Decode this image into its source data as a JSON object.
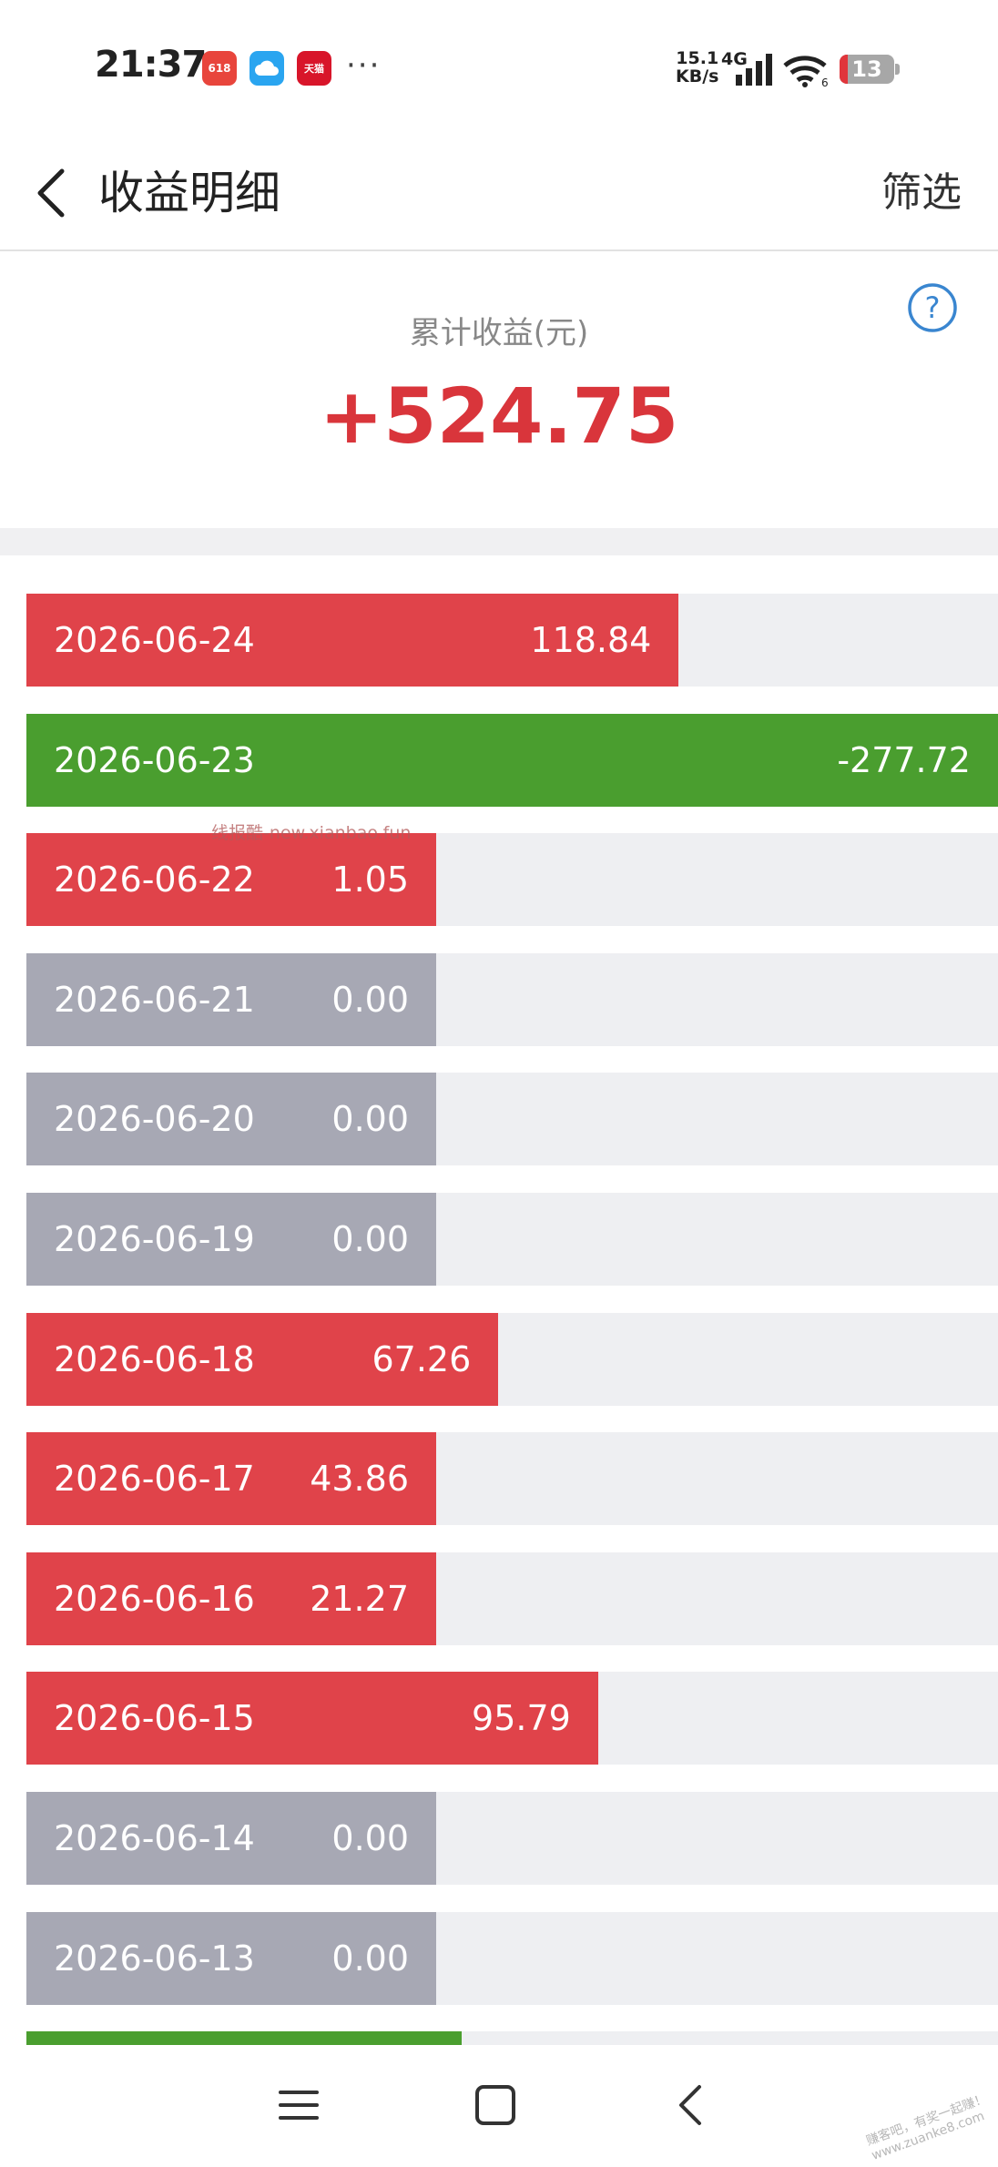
{
  "status_bar": {
    "time": "21:37",
    "app_icons": [
      {
        "name": "618-shopping-app-icon",
        "color": "#e8453c",
        "label": "618"
      },
      {
        "name": "cloud-app-icon",
        "color": "#2aa5f0",
        "label": ""
      },
      {
        "name": "tmall-app-icon",
        "color": "#d8152a",
        "label": "天猫"
      }
    ],
    "more": "···",
    "net_speed_value": "15.1",
    "net_speed_unit": "KB/s",
    "network": "4G",
    "battery": "13"
  },
  "header": {
    "title": "收益明细",
    "filter_label": "筛选"
  },
  "summary": {
    "label": "累计收益(元)",
    "value": "+524.75"
  },
  "colors": {
    "positive": "#e0434a",
    "negative": "#4a9e2f",
    "zero": "#a7a8b4",
    "track": "#eeeff2",
    "accent": "#d9353b"
  },
  "records": [
    {
      "date": "2026-06-24",
      "value": "118.84",
      "amount": 118.84
    },
    {
      "date": "2026-06-23",
      "value": "-277.72",
      "amount": -277.72
    },
    {
      "date": "2026-06-22",
      "value": "1.05",
      "amount": 1.05
    },
    {
      "date": "2026-06-21",
      "value": "0.00",
      "amount": 0
    },
    {
      "date": "2026-06-20",
      "value": "0.00",
      "amount": 0
    },
    {
      "date": "2026-06-19",
      "value": "0.00",
      "amount": 0
    },
    {
      "date": "2026-06-18",
      "value": "67.26",
      "amount": 67.26
    },
    {
      "date": "2026-06-17",
      "value": "43.86",
      "amount": 43.86
    },
    {
      "date": "2026-06-16",
      "value": "21.27",
      "amount": 21.27
    },
    {
      "date": "2026-06-15",
      "value": "95.79",
      "amount": 95.79
    },
    {
      "date": "2026-06-14",
      "value": "0.00",
      "amount": 0
    },
    {
      "date": "2026-06-13",
      "value": "0.00",
      "amount": 0
    },
    {
      "date": "",
      "value": "",
      "amount": -20
    }
  ],
  "watermark": "线报酷-new.xianbao.fun",
  "corner_watermark": "赚客吧，有奖一起赚！ www.zuanke8.com",
  "navbar": {
    "icons": [
      "menu-icon",
      "home-icon",
      "back-icon"
    ]
  }
}
